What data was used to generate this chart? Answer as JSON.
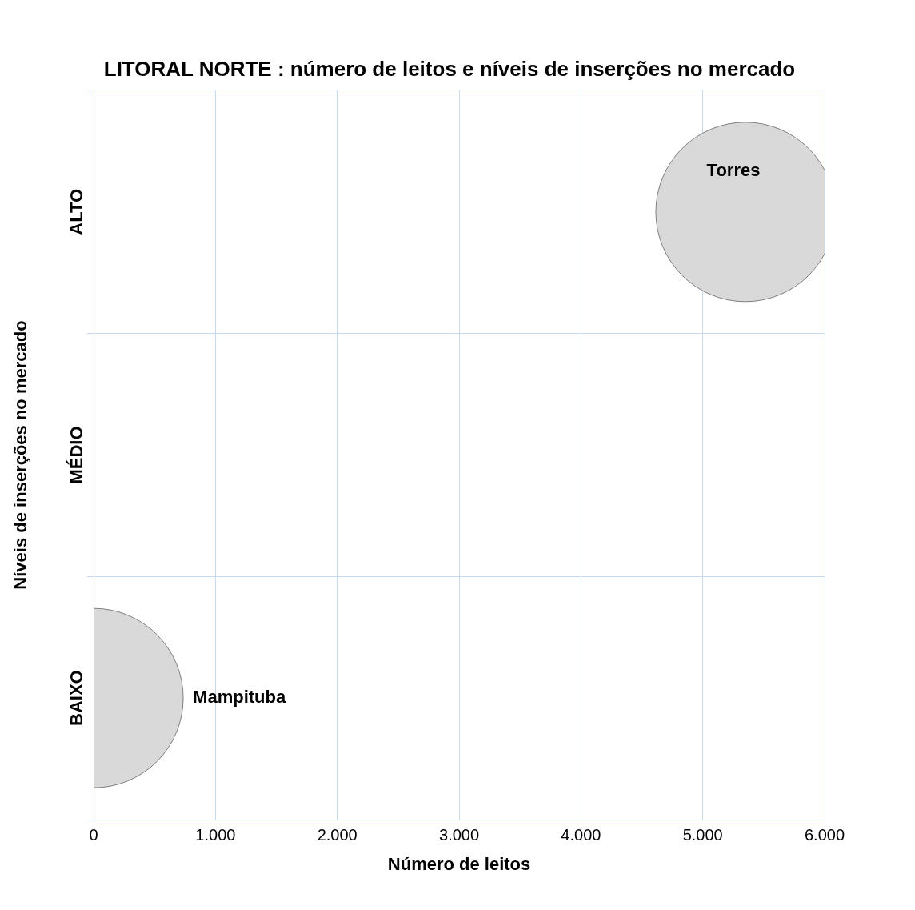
{
  "chart_data": {
    "type": "bubble",
    "title": "LITORAL NORTE : número de leitos e níveis de inserções no mercado",
    "xlabel": "Número de leitos",
    "ylabel": "Níveis de inserções no mercado",
    "orientation": "horizontal",
    "categories": [
      "ALTO",
      "MÉDIO",
      "BAIXO"
    ],
    "series": [
      {
        "name": "Torres",
        "color": "#d9d9d9",
        "values": [
          5350,
          null,
          null
        ],
        "sizes": [
          1,
          null,
          null
        ]
      },
      {
        "name": "Mampituba",
        "color": "#d9d9d9",
        "values": [
          null,
          null,
          0
        ],
        "sizes": [
          null,
          null,
          1
        ]
      }
    ],
    "xlim": [
      0,
      6000
    ],
    "xticks": [
      {
        "value": 0,
        "label": "0"
      },
      {
        "value": 1000,
        "label": "1.000"
      },
      {
        "value": 2000,
        "label": "2.000"
      },
      {
        "value": 3000,
        "label": "3.000"
      },
      {
        "value": 4000,
        "label": "4.000"
      },
      {
        "value": 5000,
        "label": "5.000"
      },
      {
        "value": 6000,
        "label": "6.000"
      }
    ],
    "grid": true,
    "legend": false
  }
}
